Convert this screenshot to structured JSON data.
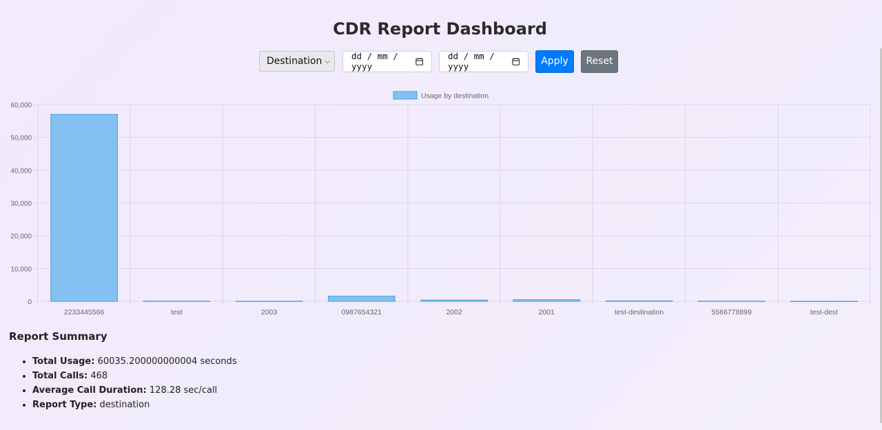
{
  "header": {
    "title": "CDR Report Dashboard"
  },
  "filters": {
    "report_type": "Destination",
    "start_date_placeholder": "dd / mm / yyyy",
    "end_date_placeholder": "dd / mm / yyyy",
    "apply_label": "Apply",
    "reset_label": "Reset"
  },
  "colors": {
    "bar_fill": "#85c0f2",
    "bar_stroke": "#4a9de0",
    "apply": "#007bff",
    "reset": "#6c757d"
  },
  "chart_data": {
    "type": "bar",
    "categories": [
      "2233445566",
      "test",
      "2003",
      "0987654321",
      "2002",
      "2001",
      "test-destination",
      "5566778899",
      "test-dest"
    ],
    "series": [
      {
        "name": "Usage by destination",
        "values": [
          57000,
          80,
          60,
          1600,
          400,
          500,
          150,
          80,
          30
        ]
      }
    ],
    "ylim": [
      0,
      60000
    ],
    "yticks": [
      "0",
      "10,000",
      "20,000",
      "30,000",
      "40,000",
      "50,000",
      "60,000"
    ],
    "legend": "top-center",
    "grid": true
  },
  "summary": {
    "heading": "Report Summary",
    "items": [
      {
        "label": "Total Usage:",
        "value": "60035.200000000004 seconds"
      },
      {
        "label": "Total Calls:",
        "value": "468"
      },
      {
        "label": "Average Call Duration:",
        "value": "128.28 sec/call"
      },
      {
        "label": "Report Type:",
        "value": "destination"
      }
    ]
  }
}
